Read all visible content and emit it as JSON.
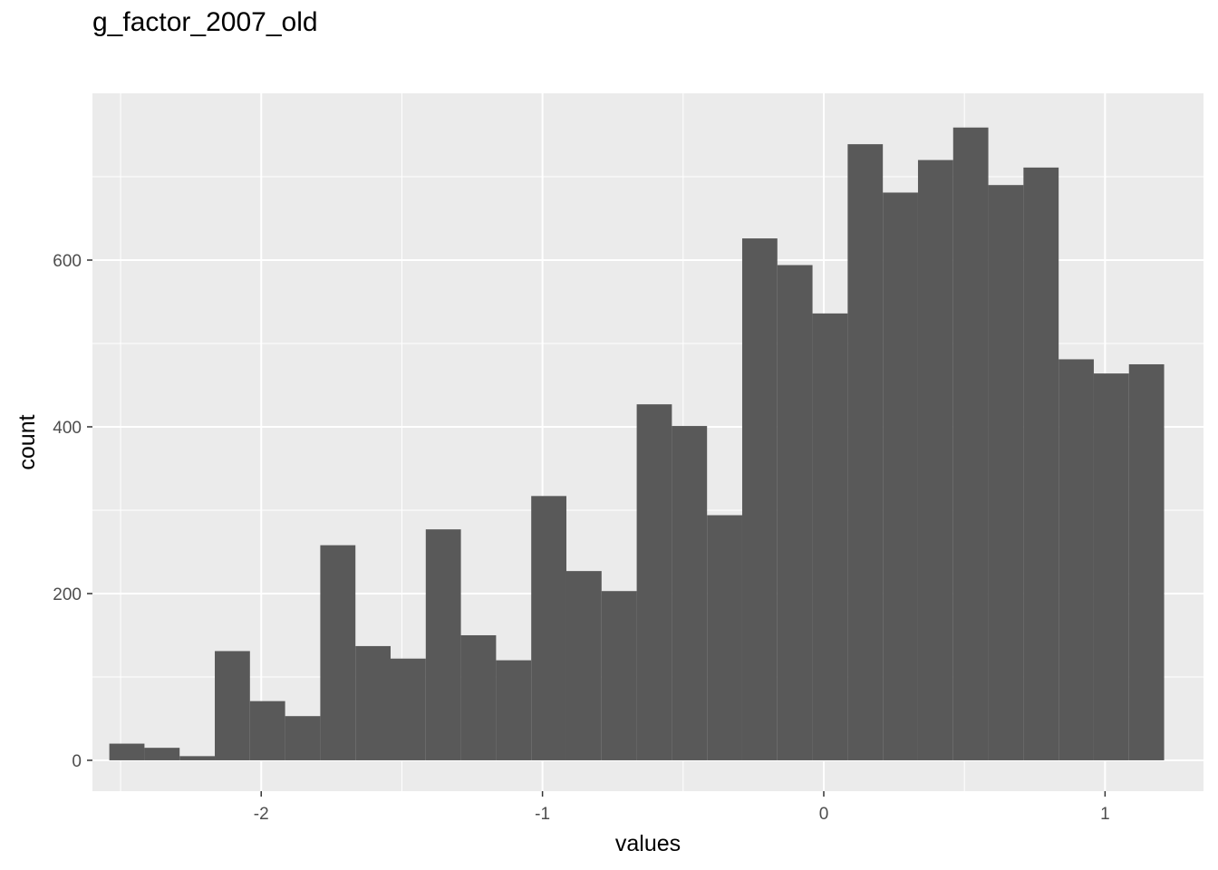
{
  "chart_data": {
    "type": "bar",
    "subtype": "histogram",
    "title": "g_factor_2007_old",
    "xlabel": "values",
    "ylabel": "count",
    "xlim": [
      -2.6,
      1.35
    ],
    "ylim": [
      -37,
      800
    ],
    "x_ticks": [
      {
        "value": -2,
        "label": "-2"
      },
      {
        "value": -1,
        "label": "-1"
      },
      {
        "value": 0,
        "label": "0"
      },
      {
        "value": 1,
        "label": "1"
      }
    ],
    "y_ticks": [
      {
        "value": 0,
        "label": "0"
      },
      {
        "value": 200,
        "label": "200"
      },
      {
        "value": 400,
        "label": "400"
      },
      {
        "value": 600,
        "label": "600"
      }
    ],
    "grid": true,
    "bin_width": 0.125,
    "bins": [
      {
        "x0": -2.54,
        "count": 20
      },
      {
        "x0": -2.415,
        "count": 15
      },
      {
        "x0": -2.29,
        "count": 5
      },
      {
        "x0": -2.165,
        "count": 131
      },
      {
        "x0": -2.04,
        "count": 71
      },
      {
        "x0": -1.915,
        "count": 53
      },
      {
        "x0": -1.79,
        "count": 258
      },
      {
        "x0": -1.665,
        "count": 137
      },
      {
        "x0": -1.54,
        "count": 122
      },
      {
        "x0": -1.415,
        "count": 277
      },
      {
        "x0": -1.29,
        "count": 150
      },
      {
        "x0": -1.165,
        "count": 120
      },
      {
        "x0": -1.04,
        "count": 317
      },
      {
        "x0": -0.915,
        "count": 227
      },
      {
        "x0": -0.79,
        "count": 203
      },
      {
        "x0": -0.665,
        "count": 427
      },
      {
        "x0": -0.54,
        "count": 401
      },
      {
        "x0": -0.415,
        "count": 294
      },
      {
        "x0": -0.29,
        "count": 626
      },
      {
        "x0": -0.165,
        "count": 594
      },
      {
        "x0": -0.04,
        "count": 536
      },
      {
        "x0": 0.085,
        "count": 739
      },
      {
        "x0": 0.21,
        "count": 681
      },
      {
        "x0": 0.335,
        "count": 720
      },
      {
        "x0": 0.46,
        "count": 759
      },
      {
        "x0": 0.585,
        "count": 690
      },
      {
        "x0": 0.71,
        "count": 711
      },
      {
        "x0": 0.835,
        "count": 481
      },
      {
        "x0": 0.96,
        "count": 464
      },
      {
        "x0": 1.085,
        "count": 475
      }
    ],
    "colors": {
      "bar_fill": "#595959",
      "panel_background": "#ebebeb",
      "grid_major": "#ffffff",
      "tick_text": "#4d4d4d"
    }
  }
}
